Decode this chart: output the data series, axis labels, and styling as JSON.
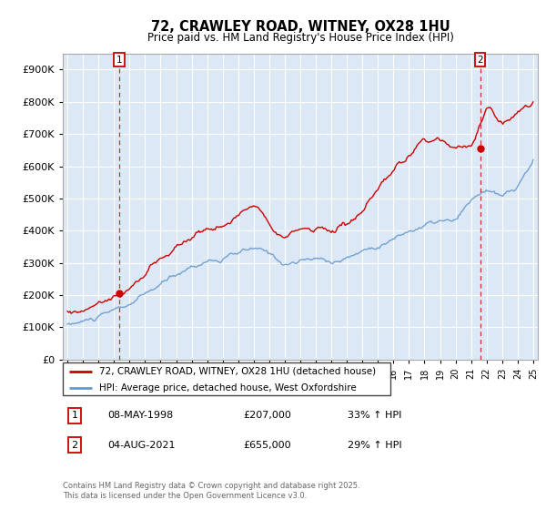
{
  "title": "72, CRAWLEY ROAD, WITNEY, OX28 1HU",
  "subtitle": "Price paid vs. HM Land Registry's House Price Index (HPI)",
  "legend_property": "72, CRAWLEY ROAD, WITNEY, OX28 1HU (detached house)",
  "legend_hpi": "HPI: Average price, detached house, West Oxfordshire",
  "footnote": "Contains HM Land Registry data © Crown copyright and database right 2025.\nThis data is licensed under the Open Government Licence v3.0.",
  "sale1_date": "08-MAY-1998",
  "sale1_price": "£207,000",
  "sale1_hpi": "33% ↑ HPI",
  "sale2_date": "04-AUG-2021",
  "sale2_price": "£655,000",
  "sale2_hpi": "29% ↑ HPI",
  "sale1_year": 1998.35,
  "sale1_value": 207000,
  "sale2_year": 2021.58,
  "sale2_value": 655000,
  "color_property": "#cc0000",
  "color_hpi": "#6699cc",
  "ylim_max": 950000,
  "ylim_min": 0,
  "xlim_min": 1994.7,
  "xlim_max": 2025.3,
  "plot_bg": "#dce8f5",
  "grid_color": "#ffffff",
  "num_points": 370,
  "seed": 10
}
